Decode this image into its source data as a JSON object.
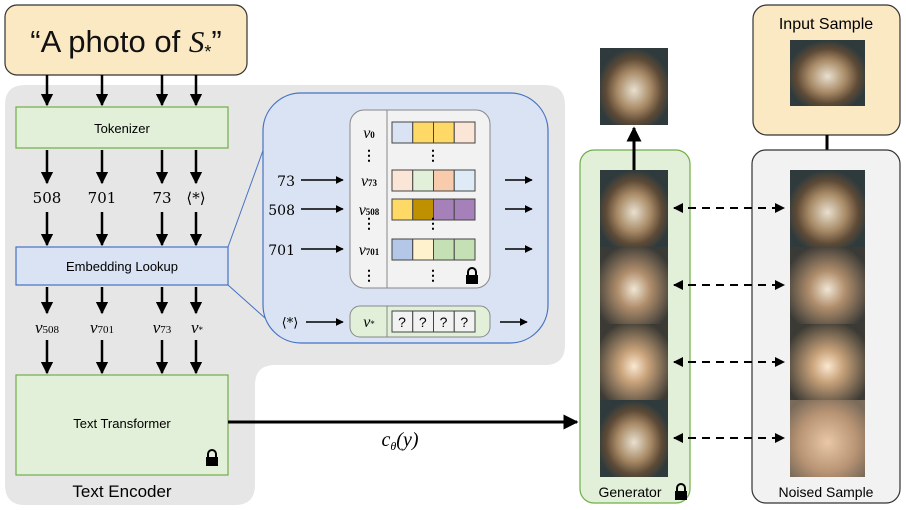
{
  "prompt": {
    "text": "“A photo of ",
    "symbol": "S",
    "subscript": "*",
    "close": "”"
  },
  "text_encoder": {
    "label": "Text Encoder",
    "tokenizer": "Tokenizer",
    "tokens": [
      "508",
      "701",
      "73",
      "⟨*⟩"
    ],
    "embedding_lookup": "Embedding Lookup",
    "vectors": [
      {
        "v": "v",
        "sub": "508"
      },
      {
        "v": "v",
        "sub": "701"
      },
      {
        "v": "v",
        "sub": "73"
      },
      {
        "v": "v",
        "sub": "*"
      }
    ],
    "text_transformer": "Text Transformer",
    "locked_icon": "lock-icon"
  },
  "embedding_table": {
    "inputs": [
      "73",
      "508",
      "701"
    ],
    "rows": [
      {
        "label": "v",
        "sub": "0",
        "colors": [
          "#dae3f3",
          "#ffd966",
          "#ffd966",
          "#fbe5d6"
        ]
      },
      {
        "label": "v",
        "sub": "73",
        "colors": [
          "#fbe5d6",
          "#e2f0d9",
          "#f8cbad",
          "#deebf7"
        ]
      },
      {
        "label": "v",
        "sub": "508",
        "colors": [
          "#ffd966",
          "#bf9000",
          "#a680b8",
          "#a680b8"
        ]
      },
      {
        "label": "v",
        "sub": "701",
        "colors": [
          "#b4c7e7",
          "#fff2cc",
          "#c5e0b4",
          "#c5e0b4"
        ]
      }
    ],
    "ellipsis": "⋮",
    "new_token": {
      "input": "⟨*⟩",
      "label": "v",
      "sub": "*",
      "cells": [
        "?",
        "?",
        "?",
        "?"
      ]
    }
  },
  "conditioning": {
    "c": "c",
    "sub": "θ",
    "arg": "(y)"
  },
  "generator": {
    "label": "Generator"
  },
  "input_sample": {
    "label": "Input Sample"
  },
  "noised_sample": {
    "label": "Noised Sample"
  },
  "colors": {
    "yellow": "#fbe9c4",
    "green": "#e2f0d9",
    "green_stroke": "#70ad47",
    "blue": "#dae3f3",
    "blue_stroke": "#4472c4",
    "gray": "#e7e6e6"
  }
}
